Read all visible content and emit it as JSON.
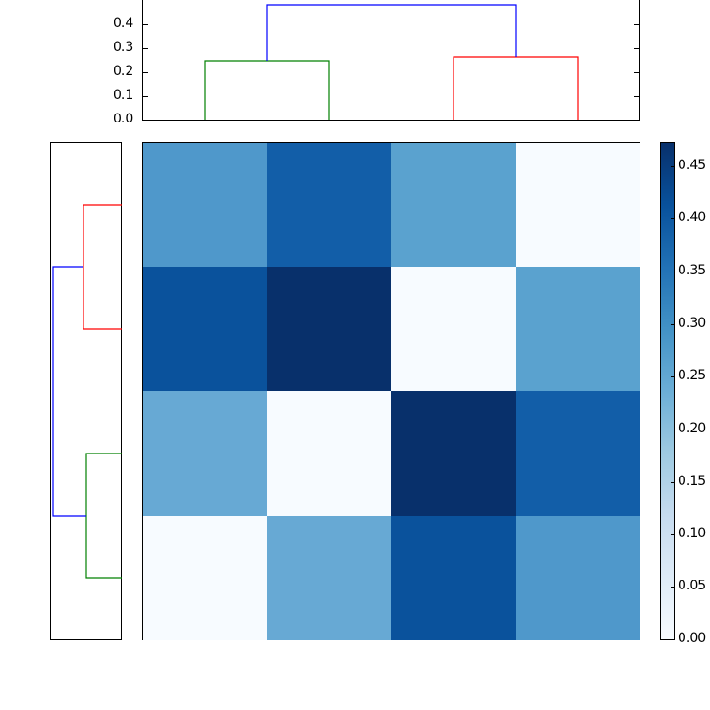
{
  "chart_data": [
    {
      "type": "heatmap",
      "title": "",
      "xlabel": "",
      "ylabel": "",
      "rows": 4,
      "cols": 4,
      "values": [
        [
          0.28,
          0.38,
          0.26,
          0.0
        ],
        [
          0.4,
          0.472,
          0.0,
          0.26
        ],
        [
          0.245,
          0.0,
          0.472,
          0.38
        ],
        [
          0.0,
          0.245,
          0.4,
          0.28
        ]
      ],
      "cell_colors": [
        [
          "#4f98cb",
          "#125ea8",
          "#5aa2cf",
          "#f7fbff"
        ],
        [
          "#0a529c",
          "#08306b",
          "#f7fbff",
          "#5aa2cf"
        ],
        [
          "#67a9d4",
          "#f7fbff",
          "#08306b",
          "#125ea8"
        ],
        [
          "#f7fbff",
          "#67a9d4",
          "#0a529c",
          "#4f98cb"
        ]
      ],
      "colormap": "Blues",
      "vmin": 0.0,
      "vmax": 0.472
    },
    {
      "type": "dendrogram",
      "orientation": "top",
      "ylim": [
        0.0,
        0.49
      ],
      "yticks": [
        "0.0",
        "0.1",
        "0.2",
        "0.3",
        "0.4"
      ],
      "links": [
        {
          "color": "#008000",
          "height": 0.245,
          "children": [
            "leaf0",
            "leaf1"
          ]
        },
        {
          "color": "#ff0000",
          "height": 0.263,
          "children": [
            "leaf2",
            "leaf3"
          ]
        },
        {
          "color": "#0000ff",
          "height": 0.478,
          "children": [
            "green-cluster",
            "red-cluster"
          ]
        }
      ]
    },
    {
      "type": "dendrogram",
      "orientation": "left",
      "links": [
        {
          "color": "#ff0000",
          "height": 0.263,
          "children": [
            "row0",
            "row1"
          ]
        },
        {
          "color": "#008000",
          "height": 0.245,
          "children": [
            "row2",
            "row3"
          ]
        },
        {
          "color": "#0000ff",
          "height": 0.478,
          "children": [
            "red-cluster",
            "green-cluster"
          ]
        }
      ]
    },
    {
      "type": "colorbar",
      "range": [
        0.0,
        0.472
      ],
      "ticks": [
        "0.00",
        "0.05",
        "0.10",
        "0.15",
        "0.20",
        "0.25",
        "0.30",
        "0.35",
        "0.40",
        "0.45"
      ]
    }
  ],
  "top_dendro": {
    "yticks": [
      "0.4",
      "0.3",
      "0.2",
      "0.1",
      "0.0"
    ]
  },
  "colorbar": {
    "ticks": [
      "0.45",
      "0.40",
      "0.35",
      "0.30",
      "0.25",
      "0.20",
      "0.15",
      "0.10",
      "0.05",
      "0.00"
    ]
  }
}
